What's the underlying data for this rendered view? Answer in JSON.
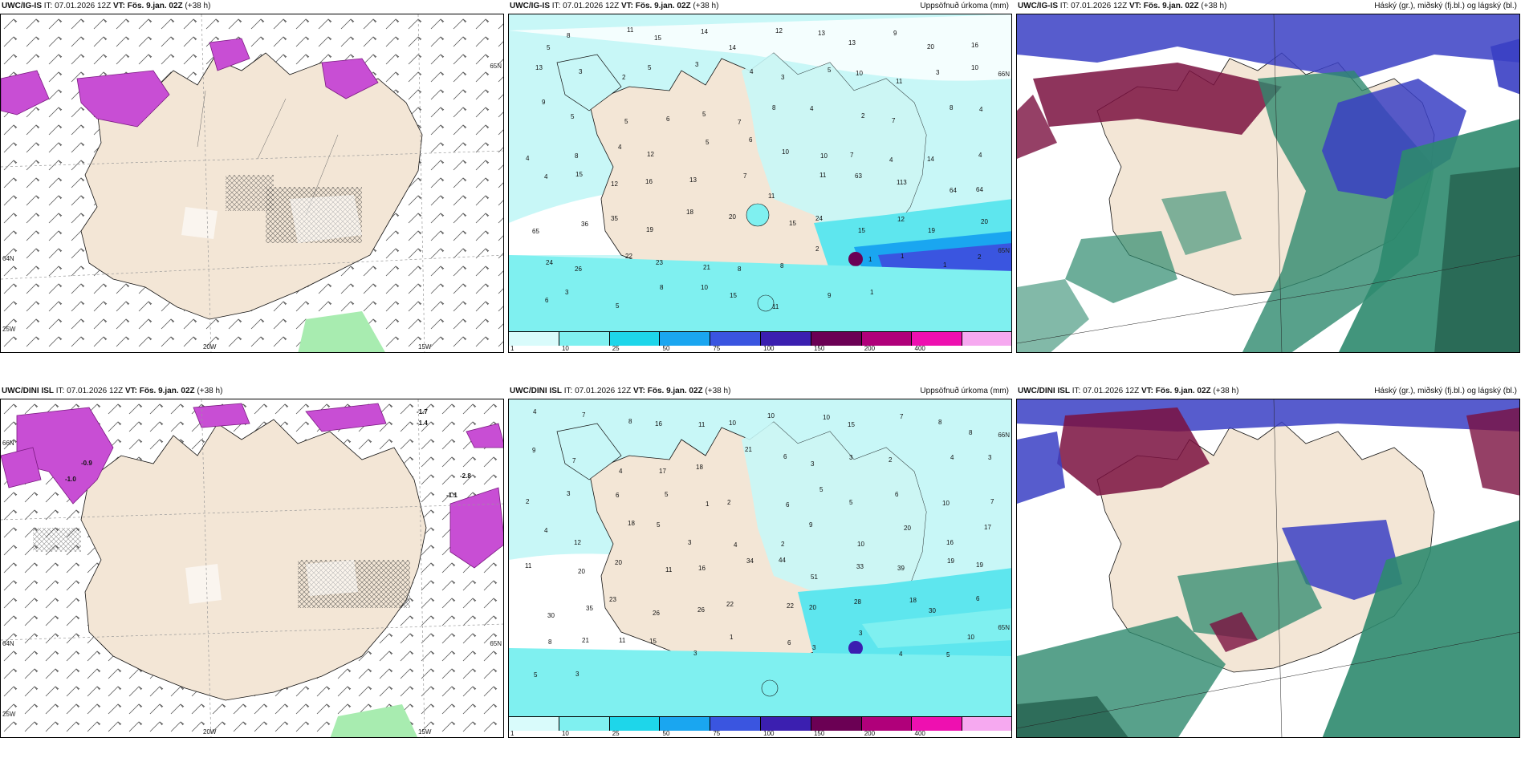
{
  "panels": [
    {
      "model": "UWC/IG-IS",
      "init": " IT: 07.01.2026 12Z ",
      "valid_label": "VT:",
      "valid": " Fös. 9.jan. 02Z",
      "lead": " (+38 h)",
      "right_title": "",
      "ticks": [
        "20W",
        "15W",
        "25W",
        "65N",
        "64N"
      ]
    },
    {
      "model": "UWC/IG-IS",
      "init": " IT: 07.01.2026 12Z ",
      "valid_label": "VT:",
      "valid": " Fös. 9.jan. 02Z",
      "lead": " (+38 h)",
      "right_title": "Uppsöfnuð úrkoma (mm)",
      "ticks": [
        "66N",
        "65N"
      ],
      "values": [
        "5",
        "8",
        "11",
        "15",
        "14",
        "14",
        "12",
        "13",
        "13",
        "9",
        "20",
        "16",
        "13",
        "3",
        "2",
        "5",
        "3",
        "4",
        "3",
        "5",
        "10",
        "11",
        "3",
        "10",
        "9",
        "5",
        "5",
        "6",
        "5",
        "7",
        "8",
        "4",
        "2",
        "7",
        "8",
        "4",
        "4",
        "8",
        "4",
        "12",
        "5",
        "6",
        "10",
        "10",
        "7",
        "4",
        "14",
        "4",
        "4",
        "15",
        "12",
        "16",
        "13",
        "7",
        "11",
        "11",
        "63",
        "113",
        "64",
        "64",
        "65",
        "36",
        "35",
        "19",
        "18",
        "20",
        "15",
        "24",
        "15",
        "12",
        "19",
        "20",
        "24",
        "26",
        "22",
        "23",
        "21",
        "8",
        "8",
        "2",
        "1",
        "1",
        "1",
        "2",
        "6",
        "3",
        "5",
        "8",
        "10",
        "15",
        "11",
        "9",
        "1"
      ]
    },
    {
      "model": "UWC/IG-IS",
      "init": " IT: 07.01.2026 12Z ",
      "valid_label": "VT:",
      "valid": " Fös. 9.jan. 02Z",
      "lead": " (+38 h)",
      "right_title": "Háský (gr.), miðský (fj.bl.) og lágský (bl.)"
    },
    {
      "model": "UWC/DINI ISL",
      "init": " IT: 07.01.2026 12Z ",
      "valid_label": "VT:",
      "valid": " Fös. 9.jan. 02Z",
      "lead": " (+38 h)",
      "right_title": "",
      "ticks": [
        "20W",
        "15W",
        "25W",
        "66N",
        "64N",
        "65N"
      ],
      "contour_labels": [
        "-1.7",
        "-1.4",
        "-2.8",
        "-1.1",
        "-1.0",
        "-0.9"
      ]
    },
    {
      "model": "UWC/DINI ISL",
      "init": " IT: 07.01.2026 12Z ",
      "valid_label": "VT:",
      "valid": " Fös. 9.jan. 02Z",
      "lead": " (+38 h)",
      "right_title": "Uppsöfnuð úrkoma (mm)",
      "ticks": [
        "66N",
        "65N"
      ],
      "values": [
        "4",
        "7",
        "8",
        "16",
        "11",
        "10",
        "10",
        "10",
        "15",
        "7",
        "8",
        "8",
        "9",
        "7",
        "4",
        "17",
        "18",
        "21",
        "6",
        "3",
        "3",
        "2",
        "4",
        "3",
        "2",
        "3",
        "6",
        "5",
        "1",
        "2",
        "6",
        "5",
        "5",
        "6",
        "10",
        "7",
        "4",
        "12",
        "18",
        "5",
        "3",
        "4",
        "2",
        "9",
        "10",
        "20",
        "16",
        "17",
        "11",
        "20",
        "20",
        "11",
        "16",
        "34",
        "44",
        "51",
        "33",
        "39",
        "19",
        "19",
        "30",
        "35",
        "23",
        "26",
        "26",
        "22",
        "22",
        "20",
        "28",
        "18",
        "30",
        "6",
        "8",
        "21",
        "11",
        "15",
        "3",
        "1",
        "6",
        "3",
        "3",
        "4",
        "5",
        "10",
        "5",
        "3"
      ]
    },
    {
      "model": "UWC/DINI ISL",
      "init": " IT: 07.01.2026 12Z ",
      "valid_label": "VT:",
      "valid": " Fös. 9.jan. 02Z",
      "lead": " (+38 h)",
      "right_title": "Háský (gr.), miðský (fj.bl.) og lágský (bl.)"
    }
  ],
  "precip_legend": {
    "labels": [
      "1",
      "10",
      "25",
      "50",
      "75",
      "100",
      "150",
      "200",
      "400"
    ],
    "colors": [
      "#d9fbfb",
      "#7ff0f0",
      "#1ed6ea",
      "#1aa6f0",
      "#3a55e0",
      "#3b1fb0",
      "#6b0054",
      "#b0007a",
      "#ee10b0",
      "#f6a9f0"
    ]
  },
  "colors": {
    "land": "#f3e6d6",
    "precip_light": "#c8f7f7",
    "precip_mid": "#5ee6ee",
    "wind_purple": "#c84ed4",
    "high_cloud": "#2e8a6e",
    "mid_cloud": "#7a1040",
    "low_cloud": "#3a3fc4",
    "green_light": "#a8ecb0"
  }
}
